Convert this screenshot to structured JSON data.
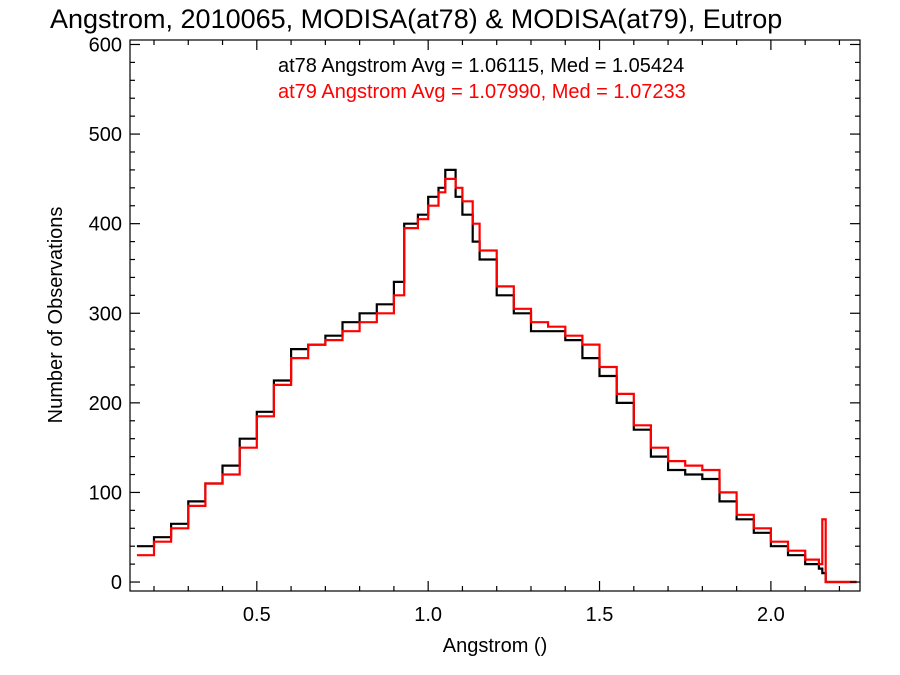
{
  "chart_data": {
    "type": "line",
    "title": "Angstrom, 2010065, MODISA(at78) & MODISA(at79), Eutrop",
    "xlabel": "Angstrom ()",
    "ylabel": "Number of Observations",
    "xlim": [
      0.13,
      2.26
    ],
    "ylim": [
      -10,
      605
    ],
    "xticks": [
      0.5,
      1.0,
      1.5,
      2.0
    ],
    "xtick_labels": [
      "0.5",
      "1.0",
      "1.5",
      "2.0"
    ],
    "yticks": [
      0,
      100,
      200,
      300,
      400,
      500,
      600
    ],
    "ytick_labels": [
      "0",
      "100",
      "200",
      "300",
      "400",
      "500",
      "600"
    ],
    "grid": false,
    "annotations": [
      {
        "text": "at78 Angstrom Avg = 1.06115, Med = 1.05424",
        "color": "#000000"
      },
      {
        "text": "at79 Angstrom Avg = 1.07990, Med = 1.07233",
        "color": "#ff0000"
      }
    ],
    "x": [
      0.15,
      0.2,
      0.25,
      0.3,
      0.35,
      0.4,
      0.45,
      0.5,
      0.55,
      0.6,
      0.65,
      0.7,
      0.75,
      0.8,
      0.85,
      0.9,
      0.93,
      0.97,
      1.0,
      1.03,
      1.05,
      1.08,
      1.1,
      1.13,
      1.15,
      1.2,
      1.25,
      1.3,
      1.35,
      1.4,
      1.45,
      1.5,
      1.55,
      1.6,
      1.65,
      1.7,
      1.75,
      1.8,
      1.85,
      1.9,
      1.95,
      2.0,
      2.05,
      2.1,
      2.14,
      2.15,
      2.16,
      2.2,
      2.25
    ],
    "series": [
      {
        "color": "#000000",
        "values": [
          40,
          50,
          65,
          90,
          110,
          130,
          160,
          190,
          225,
          260,
          265,
          275,
          290,
          300,
          310,
          335,
          400,
          410,
          430,
          440,
          460,
          430,
          410,
          380,
          360,
          320,
          300,
          280,
          280,
          270,
          250,
          230,
          200,
          170,
          140,
          125,
          120,
          115,
          90,
          70,
          55,
          40,
          30,
          20,
          15,
          10,
          0,
          0,
          0
        ]
      },
      {
        "color": "#ff0000",
        "values": [
          30,
          45,
          60,
          85,
          110,
          120,
          150,
          185,
          220,
          250,
          265,
          270,
          280,
          290,
          300,
          320,
          395,
          405,
          420,
          435,
          450,
          440,
          425,
          400,
          370,
          330,
          305,
          290,
          285,
          275,
          265,
          240,
          210,
          175,
          150,
          135,
          130,
          125,
          100,
          75,
          60,
          45,
          35,
          25,
          20,
          70,
          0,
          0,
          0
        ]
      }
    ]
  }
}
